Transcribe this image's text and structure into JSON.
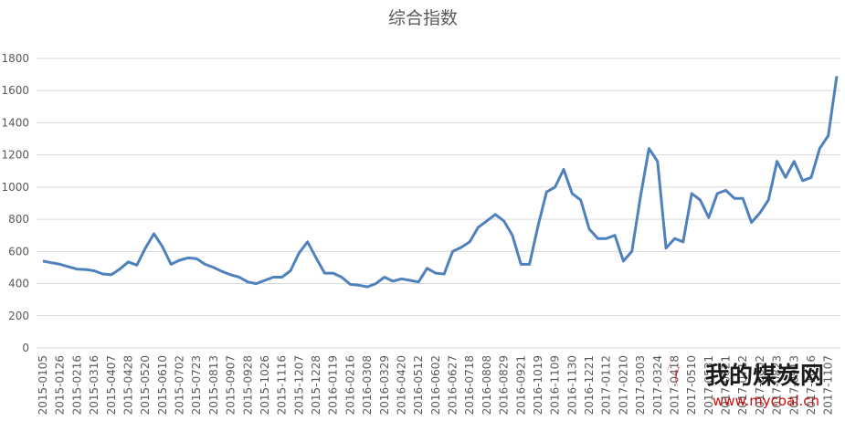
{
  "chart_data": {
    "type": "line",
    "title": "综合指数",
    "categories": [
      "2015-0105",
      null,
      "2015-0126",
      null,
      "2015-0216",
      null,
      "2015-0316",
      null,
      "2015-0407",
      null,
      "2015-0428",
      null,
      "2015-0520",
      null,
      "2015-0610",
      null,
      "2015-0702",
      null,
      "2015-0723",
      null,
      "2015-0813",
      null,
      "2015-0907",
      null,
      "2015-0928",
      null,
      "2015-1026",
      null,
      "2015-1116",
      null,
      "2015-1207",
      null,
      "2015-1228",
      null,
      "2016-0119",
      null,
      "2016-0216",
      null,
      "2016-0308",
      null,
      "2016-0329",
      null,
      "2016-0420",
      null,
      "2016-0512",
      null,
      "2016-0602",
      null,
      "2016-0627",
      null,
      "2016-0718",
      null,
      "2016-0808",
      null,
      "2016-0829",
      null,
      "2016-0921",
      null,
      "2016-1019",
      null,
      "2016-1109",
      null,
      "2016-1130",
      null,
      "2016-1221",
      null,
      "2017-0112",
      null,
      "2017-0210",
      null,
      "2017-0303",
      null,
      "2017-0324",
      null,
      "2017-0418",
      null,
      "2017-0510",
      null,
      "2017-0531",
      null,
      "2017-0621",
      null,
      "2017-0712",
      null,
      "2017-0802",
      null,
      "2017-0823",
      null,
      "2017-0913",
      null,
      "2017-1016",
      null,
      "2017-1107",
      null
    ],
    "series": [
      {
        "name": "综合指数",
        "color": "#4f81bd",
        "values": [
          540,
          530,
          520,
          505,
          490,
          488,
          480,
          460,
          455,
          490,
          535,
          515,
          620,
          710,
          630,
          520,
          545,
          560,
          555,
          520,
          500,
          475,
          455,
          440,
          410,
          400,
          420,
          440,
          440,
          480,
          590,
          660,
          560,
          465,
          465,
          440,
          395,
          390,
          380,
          400,
          440,
          415,
          430,
          420,
          410,
          495,
          465,
          460,
          600,
          625,
          660,
          750,
          790,
          830,
          790,
          700,
          520,
          520,
          760,
          970,
          1000,
          1110,
          960,
          920,
          740,
          680,
          680,
          700,
          540,
          600,
          940,
          1240,
          1160,
          620,
          680,
          660,
          960,
          920,
          810,
          960,
          980,
          930,
          930,
          780,
          840,
          920,
          1160,
          1060,
          1160,
          1040,
          1060,
          1240,
          1320,
          1690
        ]
      }
    ],
    "ylim": [
      0,
      1800
    ],
    "yticks": [
      0,
      200,
      400,
      600,
      800,
      1000,
      1200,
      1400,
      1600,
      1800
    ],
    "grid": true,
    "watermark": {
      "name": "我的煤炭网",
      "url": "www.mycoal.cn"
    }
  }
}
